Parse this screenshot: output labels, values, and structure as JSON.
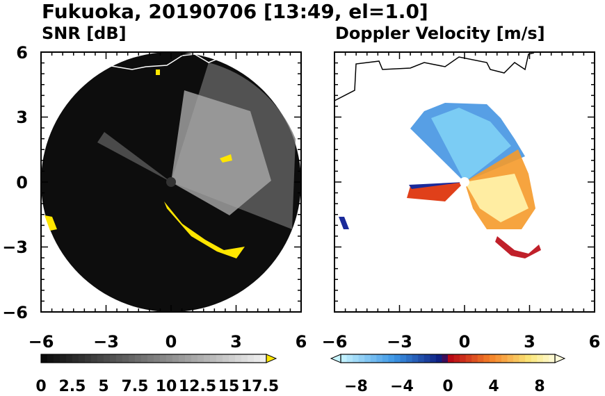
{
  "title": "Fukuoka, 20190706 [13:49, el=1.0]",
  "chart_data": [
    {
      "type": "heatmap",
      "title": "SNR [dB]",
      "x_ticks": [
        "−6",
        "−3",
        "0",
        "3",
        "6"
      ],
      "y_ticks": [
        "6",
        "3",
        "0",
        "−3",
        "−6"
      ],
      "xlim": [
        -6,
        6
      ],
      "ylim": [
        -6,
        6
      ],
      "range_ring_radius": 6,
      "colorbar": {
        "colormap": "grayscale with yellow overflow",
        "range": [
          0,
          18
        ],
        "ticks": [
          "0",
          "2.5",
          "5",
          "7.5",
          "10",
          "12.5",
          "15",
          "17.5"
        ],
        "overflow_color": "#ffe600"
      }
    },
    {
      "type": "heatmap",
      "title": "Doppler Velocity [m/s]",
      "x_ticks": [
        "−6",
        "−3",
        "0",
        "3",
        "6"
      ],
      "xlim": [
        -6,
        6
      ],
      "ylim": [
        -6,
        6
      ],
      "colorbar": {
        "colormap": "diverging blue-white-red",
        "range": [
          -10,
          10
        ],
        "ticks": [
          "−8",
          "−4",
          "0",
          "4",
          "8"
        ]
      }
    }
  ]
}
